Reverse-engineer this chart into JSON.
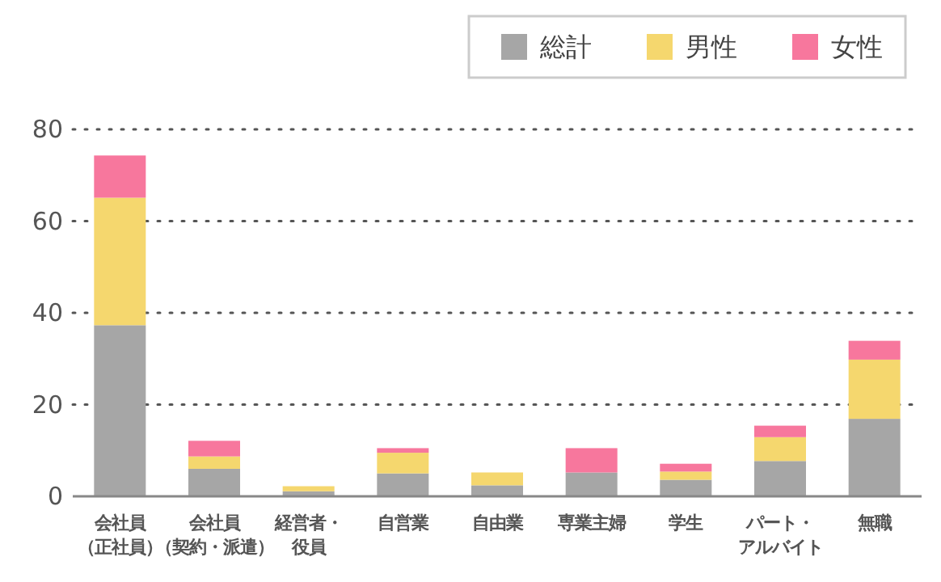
{
  "chart_data": {
    "type": "bar",
    "stacked": true,
    "categories": [
      "会社員（正社員）",
      "会社員（契約・派遣）",
      "経営者・役員",
      "自営業",
      "自由業",
      "専業主婦",
      "学生",
      "パート・アルバイト",
      "無職"
    ],
    "series": [
      {
        "name": "総計",
        "color": "#a6a6a6",
        "values": [
          37.3,
          6.0,
          1.1,
          5.0,
          2.4,
          5.2,
          3.6,
          7.7,
          16.9
        ]
      },
      {
        "name": "男性",
        "color": "#f5d76e",
        "values": [
          27.8,
          2.7,
          1.1,
          4.5,
          2.8,
          null,
          1.8,
          5.2,
          12.9
        ]
      },
      {
        "name": "女性",
        "color": "#f7779d",
        "values": [
          9.2,
          3.4,
          null,
          1.0,
          null,
          5.3,
          1.7,
          2.5,
          4.1
        ]
      }
    ],
    "ylim": [
      0,
      80
    ],
    "yticks": [
      0,
      20,
      40,
      60,
      80
    ],
    "grid": "y",
    "legend": "top right"
  }
}
